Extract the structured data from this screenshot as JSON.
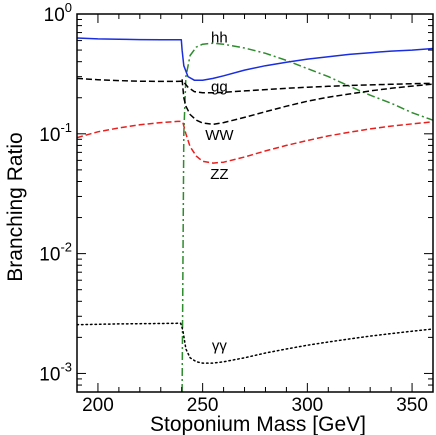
{
  "chart_data": {
    "type": "line",
    "xlabel": "Stoponium Mass  [GeV]",
    "ylabel": "Branching  Ratio",
    "xlim": [
      190,
      360
    ],
    "ylim": [
      0.0007,
      1.0
    ],
    "yscale": "log",
    "grid": false,
    "x_ticks": [
      {
        "value": 200,
        "label": "200"
      },
      {
        "value": 250,
        "label": "250"
      },
      {
        "value": 300,
        "label": "300"
      },
      {
        "value": 350,
        "label": "350"
      }
    ],
    "y_ticks": [
      {
        "value": 0.001,
        "base": "10",
        "exp": "-3"
      },
      {
        "value": 0.01,
        "base": "10",
        "exp": "-2"
      },
      {
        "value": 0.1,
        "base": "10",
        "exp": "-1"
      },
      {
        "value": 1,
        "base": "10",
        "exp": "0"
      }
    ],
    "series": [
      {
        "name": "hh",
        "color": "#2e8b2e",
        "dash": "dashdot",
        "label_at": [
          258,
          0.58
        ],
        "x": [
          240.2,
          241,
          242,
          244,
          247,
          250,
          255,
          260,
          270,
          280,
          290,
          300,
          310,
          320,
          330,
          340,
          350,
          360
        ],
        "y": [
          0.0007,
          0.1,
          0.3,
          0.45,
          0.53,
          0.56,
          0.57,
          0.56,
          0.52,
          0.47,
          0.41,
          0.35,
          0.3,
          0.25,
          0.21,
          0.18,
          0.15,
          0.13
        ]
      },
      {
        "name": "gg",
        "color": "#000000",
        "dash": "dashed",
        "label_at": [
          258,
          0.225
        ],
        "x": [
          190,
          200,
          210,
          220,
          230,
          238,
          239.5,
          241,
          243,
          246,
          250,
          255,
          260,
          270,
          280,
          290,
          300,
          310,
          320,
          330,
          340,
          350,
          360
        ],
        "y": [
          0.29,
          0.283,
          0.278,
          0.275,
          0.274,
          0.274,
          0.275,
          0.27,
          0.245,
          0.225,
          0.22,
          0.22,
          0.222,
          0.228,
          0.234,
          0.24,
          0.245,
          0.249,
          0.253,
          0.256,
          0.259,
          0.262,
          0.264
        ]
      },
      {
        "name": "WW",
        "color": "#000000",
        "dash": "dashed",
        "label_at": [
          258,
          0.089
        ],
        "x": [
          240.2,
          241,
          242,
          244,
          247,
          250,
          255,
          260,
          270,
          280,
          290,
          300,
          310,
          320,
          330,
          340,
          350,
          360
        ],
        "y": [
          0.285,
          0.2,
          0.17,
          0.145,
          0.13,
          0.123,
          0.12,
          0.124,
          0.137,
          0.153,
          0.17,
          0.187,
          0.202,
          0.215,
          0.228,
          0.24,
          0.25,
          0.26
        ]
      },
      {
        "name": "ZZ",
        "color": "#e8201e",
        "dash": "dashed",
        "label_at": [
          258,
          0.042
        ],
        "x": [
          190,
          200,
          210,
          220,
          230,
          238,
          239.5,
          240.5,
          242,
          244,
          247,
          250,
          255,
          260,
          270,
          280,
          290,
          300,
          310,
          320,
          330,
          340,
          350,
          360
        ],
        "y": [
          0.093,
          0.104,
          0.112,
          0.119,
          0.124,
          0.127,
          0.127,
          0.125,
          0.1,
          0.078,
          0.065,
          0.059,
          0.057,
          0.058,
          0.064,
          0.072,
          0.08,
          0.088,
          0.096,
          0.103,
          0.11,
          0.116,
          0.121,
          0.126
        ]
      },
      {
        "name": "γγ",
        "color": "#000000",
        "dash": "dotted",
        "label_at": [
          258,
          0.00155
        ],
        "x": [
          190,
          200,
          210,
          220,
          230,
          238,
          239.5,
          240.5,
          242,
          244,
          247,
          250,
          255,
          260,
          270,
          280,
          290,
          300,
          310,
          320,
          330,
          340,
          350,
          360
        ],
        "y": [
          0.00255,
          0.00257,
          0.00259,
          0.0026,
          0.00261,
          0.00262,
          0.00262,
          0.0023,
          0.0016,
          0.00135,
          0.00125,
          0.00122,
          0.00122,
          0.00125,
          0.00135,
          0.00148,
          0.0016,
          0.00172,
          0.00183,
          0.00194,
          0.00205,
          0.00215,
          0.00225,
          0.00235
        ]
      },
      {
        "name": "",
        "color": "#1a2ee0",
        "dash": "solid",
        "x": [
          190,
          200,
          210,
          220,
          230,
          239.8,
          240.2,
          241,
          243,
          246,
          250,
          255,
          260,
          270,
          280,
          290,
          300,
          310,
          320,
          330,
          340,
          350,
          360
        ],
        "y": [
          0.63,
          0.62,
          0.615,
          0.612,
          0.61,
          0.61,
          0.5,
          0.37,
          0.3,
          0.28,
          0.28,
          0.29,
          0.305,
          0.34,
          0.37,
          0.395,
          0.42,
          0.44,
          0.46,
          0.475,
          0.49,
          0.5,
          0.515
        ]
      }
    ]
  }
}
